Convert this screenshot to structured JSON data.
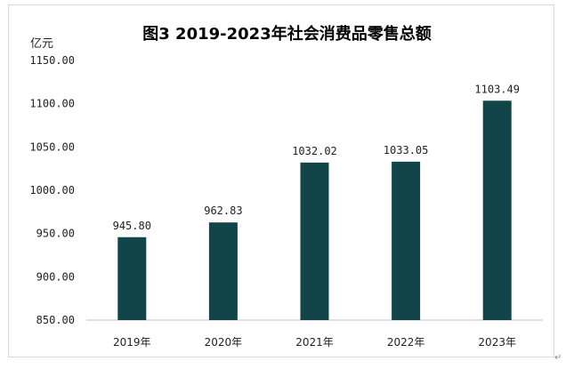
{
  "chart_data": {
    "type": "bar",
    "title": "图3 2019-2023年社会消费品零售总额",
    "ylabel": "亿元",
    "xlabel": "",
    "categories": [
      "2019年",
      "2020年",
      "2021年",
      "2022年",
      "2023年"
    ],
    "values": [
      945.8,
      962.83,
      1032.02,
      1033.05,
      1103.49
    ],
    "data_labels": [
      "945.80",
      "962.83",
      "1032.02",
      "1033.05",
      "1103.49"
    ],
    "ylim": [
      850,
      1150
    ],
    "yticks": [
      850,
      900,
      950,
      1000,
      1050,
      1100,
      1150
    ],
    "ytick_labels": [
      "850.00",
      "900.00",
      "950.00",
      "1000.00",
      "1050.00",
      "1100.00",
      "1150.00"
    ],
    "grid": false,
    "legend": "none",
    "bar_color": "#12454a"
  },
  "page": {
    "return_mark": "↵"
  }
}
